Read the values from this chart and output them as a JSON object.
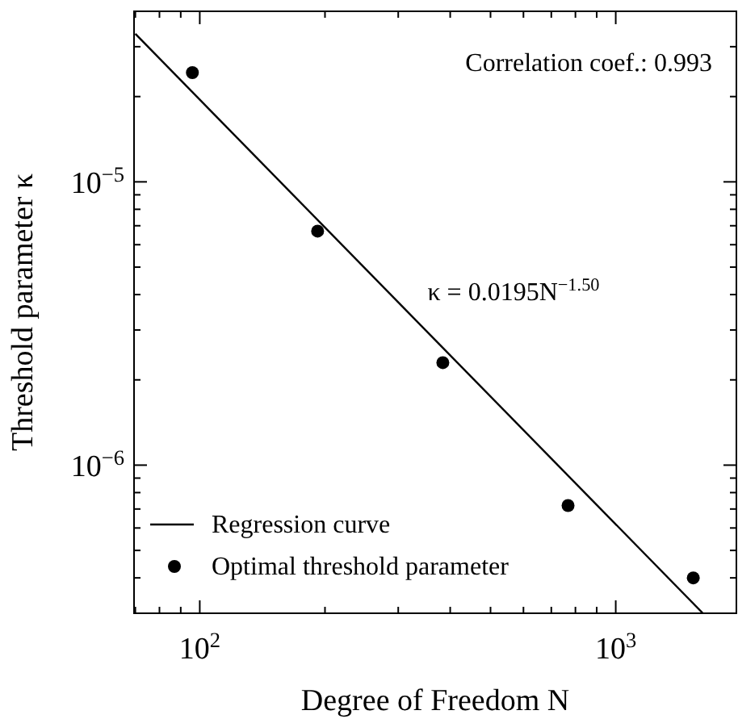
{
  "chart_data": {
    "type": "scatter",
    "xlabel": "Degree of Freedom N",
    "ylabel": "Threshold parameter κ",
    "log": "xy",
    "grid": false,
    "legend": "bottom left",
    "xlim": [
      69.5,
      1950
    ],
    "ylim": [
      3e-07,
      4e-05
    ],
    "xticks": [
      {
        "value": 70,
        "label": null
      },
      {
        "value": 80,
        "label": null
      },
      {
        "value": 90,
        "label": null
      },
      {
        "value": 100,
        "label": "10$^{2}$"
      },
      {
        "value": 200,
        "label": null
      },
      {
        "value": 300,
        "label": null
      },
      {
        "value": 400,
        "label": null
      },
      {
        "value": 500,
        "label": null
      },
      {
        "value": 600,
        "label": null
      },
      {
        "value": 700,
        "label": null
      },
      {
        "value": 800,
        "label": null
      },
      {
        "value": 900,
        "label": null
      },
      {
        "value": 1000,
        "label": "10$^{3}$"
      }
    ],
    "yticks": [
      {
        "value": 4e-07,
        "label": null
      },
      {
        "value": 5e-07,
        "label": null
      },
      {
        "value": 6e-07,
        "label": null
      },
      {
        "value": 7e-07,
        "label": null
      },
      {
        "value": 8e-07,
        "label": null
      },
      {
        "value": 9e-07,
        "label": null
      },
      {
        "value": 1e-06,
        "label": "10$^{−6}$"
      },
      {
        "value": 2e-06,
        "label": null
      },
      {
        "value": 3e-06,
        "label": null
      },
      {
        "value": 4e-06,
        "label": null
      },
      {
        "value": 5e-06,
        "label": null
      },
      {
        "value": 6e-06,
        "label": null
      },
      {
        "value": 7e-06,
        "label": null
      },
      {
        "value": 8e-06,
        "label": null
      },
      {
        "value": 9e-06,
        "label": null
      },
      {
        "value": 1e-05,
        "label": "10$^{−5}$"
      },
      {
        "value": 2e-05,
        "label": null
      },
      {
        "value": 3e-05,
        "label": null
      }
    ],
    "annotations": [
      "Correlation coef.: 0.993",
      "κ = 0.0195N$^{−1.50}$"
    ],
    "series": [
      {
        "name": "Regression curve",
        "type": "line",
        "color": "#000000",
        "line_style": "solid",
        "x": [
          70,
          1620
        ],
        "values": [
          3.33e-05,
          3e-07
        ]
      },
      {
        "name": "Optimal threshold parameter",
        "color": "#000000",
        "marker": "circle",
        "x": [
          96,
          192,
          384,
          768,
          1536
        ],
        "values": [
          2.43e-05,
          6.7e-06,
          2.3e-06,
          7.2e-07,
          4e-07
        ]
      }
    ]
  }
}
